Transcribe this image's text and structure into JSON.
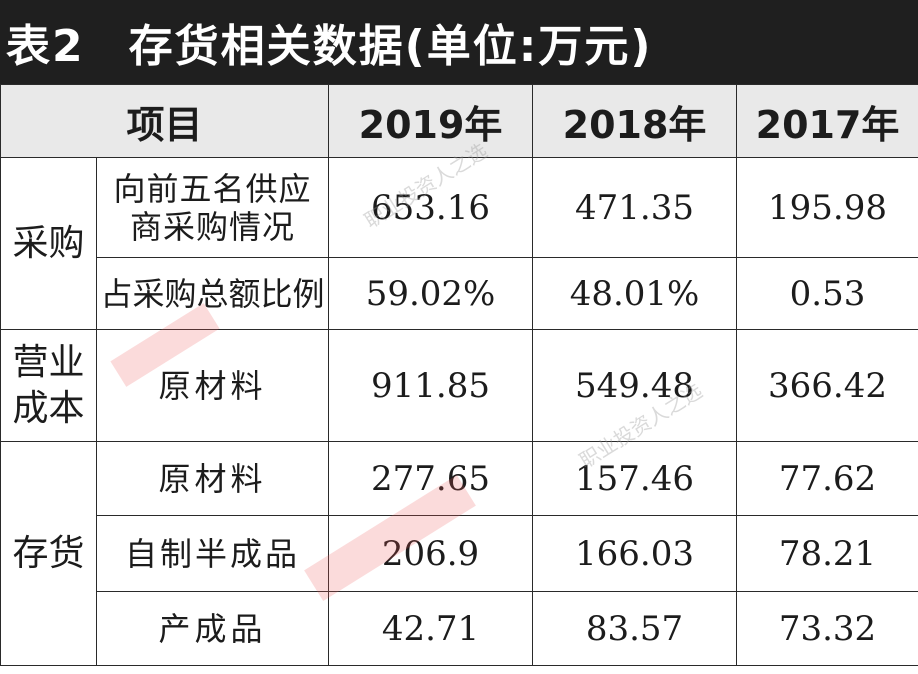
{
  "title": {
    "label": "表2",
    "text": "存货相关数据(单位:万元)"
  },
  "header": {
    "item": "项目",
    "col1": "2019年",
    "col2": "2018年",
    "col3": "2017年"
  },
  "rows": {
    "r1": {
      "category": "采购",
      "item_line1": "向前五名供应",
      "item_line2": "商采购情况",
      "v2019": "653.16",
      "v2018": "471.35",
      "v2017": "195.98"
    },
    "r2": {
      "item": "占采购总额比例",
      "v2019": "59.02%",
      "v2018": "48.01%",
      "v2017": "0.53"
    },
    "r3": {
      "category_line1": "营业",
      "category_line2": "成本",
      "item": "原材料",
      "v2019": "911.85",
      "v2018": "549.48",
      "v2017": "366.42"
    },
    "r4": {
      "category": "存货",
      "item": "原材料",
      "v2019": "277.65",
      "v2018": "157.46",
      "v2017": "77.62"
    },
    "r5": {
      "item": "自制半成品",
      "v2019": "206.9",
      "v2018": "166.03",
      "v2017": "78.21"
    },
    "r6": {
      "item": "产成品",
      "v2019": "42.71",
      "v2018": "83.57",
      "v2017": "73.32"
    }
  },
  "watermark": {
    "text": "职业投资人之选"
  }
}
